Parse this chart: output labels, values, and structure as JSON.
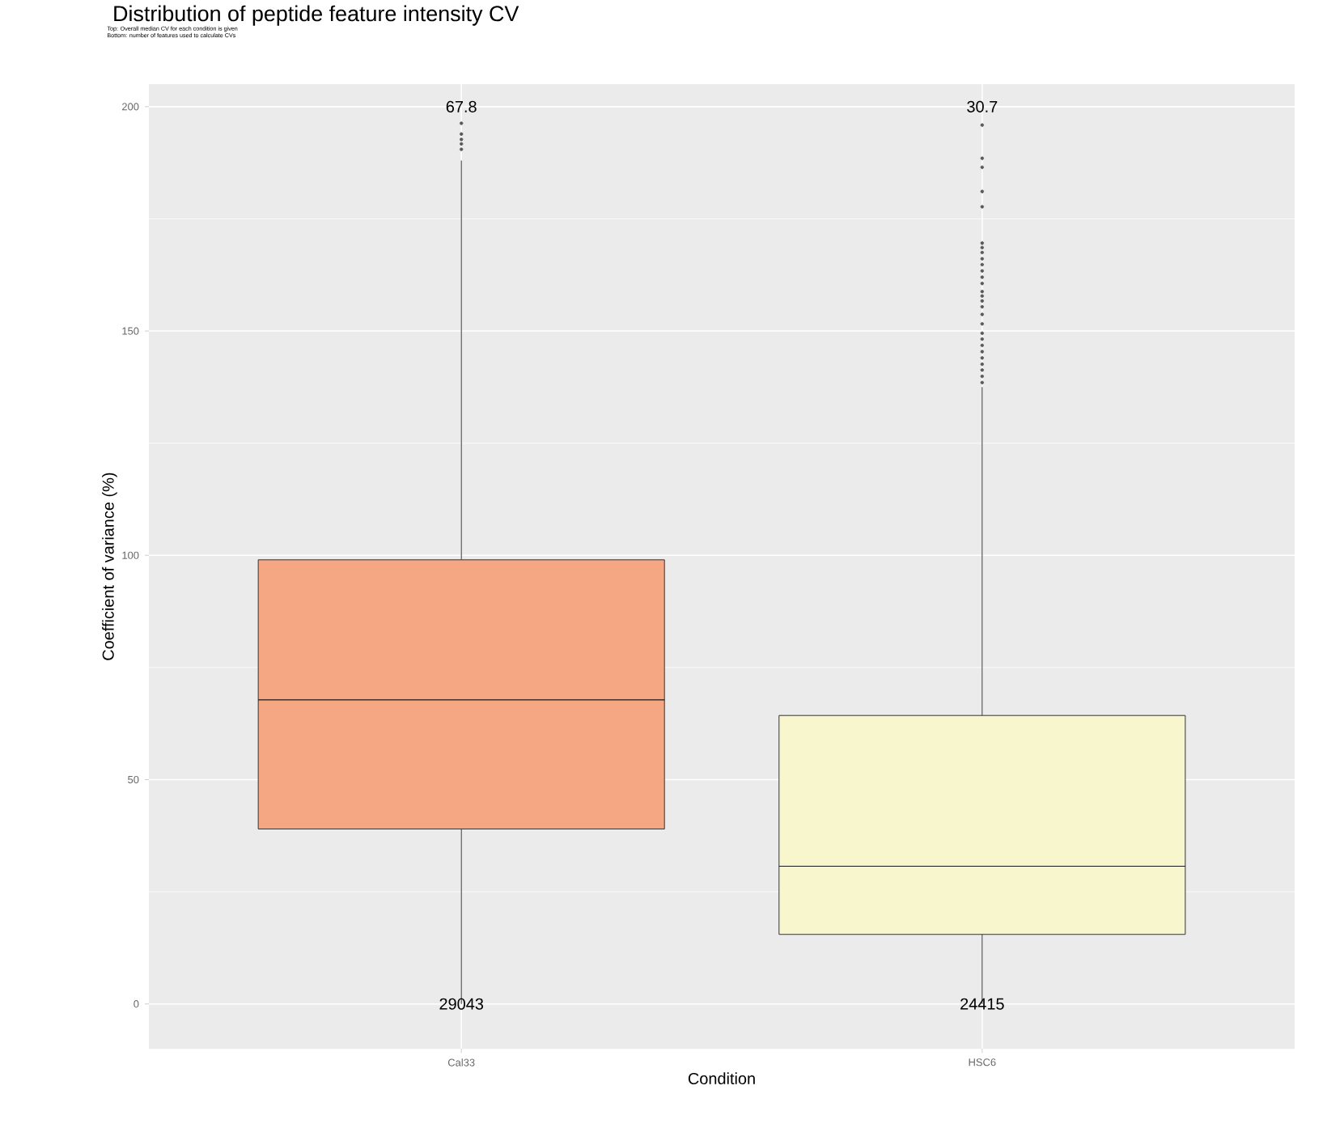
{
  "chart_data": {
    "type": "box",
    "title": "Distribution of peptide feature intensity CV",
    "subtitle": "Top: Overall median CV for each condition is given",
    "xlabel": "Condition",
    "ylabel": "Coefficient of variance (%)",
    "categories": [
      "Cal33",
      "HSC6"
    ],
    "colors": [
      "#f5a683",
      "#f8f6cd"
    ],
    "boxes": [
      {
        "low": 0,
        "q1": 39.0,
        "median": 67.8,
        "q3": 99.0,
        "high": 188,
        "outliers": [
          196.3,
          193.9,
          192.7,
          191.7,
          190.5
        ]
      },
      {
        "low": 0,
        "q1": 15.5,
        "median": 30.7,
        "q3": 64.3,
        "high": 137.5,
        "outliers": [
          195.9,
          188.5,
          186.5,
          181.1,
          177.7,
          169.6,
          168.6,
          167.5,
          166.1,
          164.8,
          163.4,
          162.0,
          160.6,
          158.8,
          157.8,
          156.7,
          155.4,
          153.7,
          151.6,
          149.5,
          148.2,
          146.8,
          145.4,
          144.0,
          142.6,
          141.3,
          139.9,
          138.5
        ]
      }
    ],
    "ylim": [
      -10,
      205
    ],
    "yticks": [
      0,
      50,
      100,
      150,
      200
    ],
    "grid": true,
    "annotations": [
      "Bottom: number of features used to calculate CVs",
      "67.8",
      "30.7",
      {
        "text": "29043",
        "x": "Cal33",
        "y": 0
      },
      {
        "text": "24415",
        "x": "HSC6",
        "y": 0
      }
    ]
  }
}
